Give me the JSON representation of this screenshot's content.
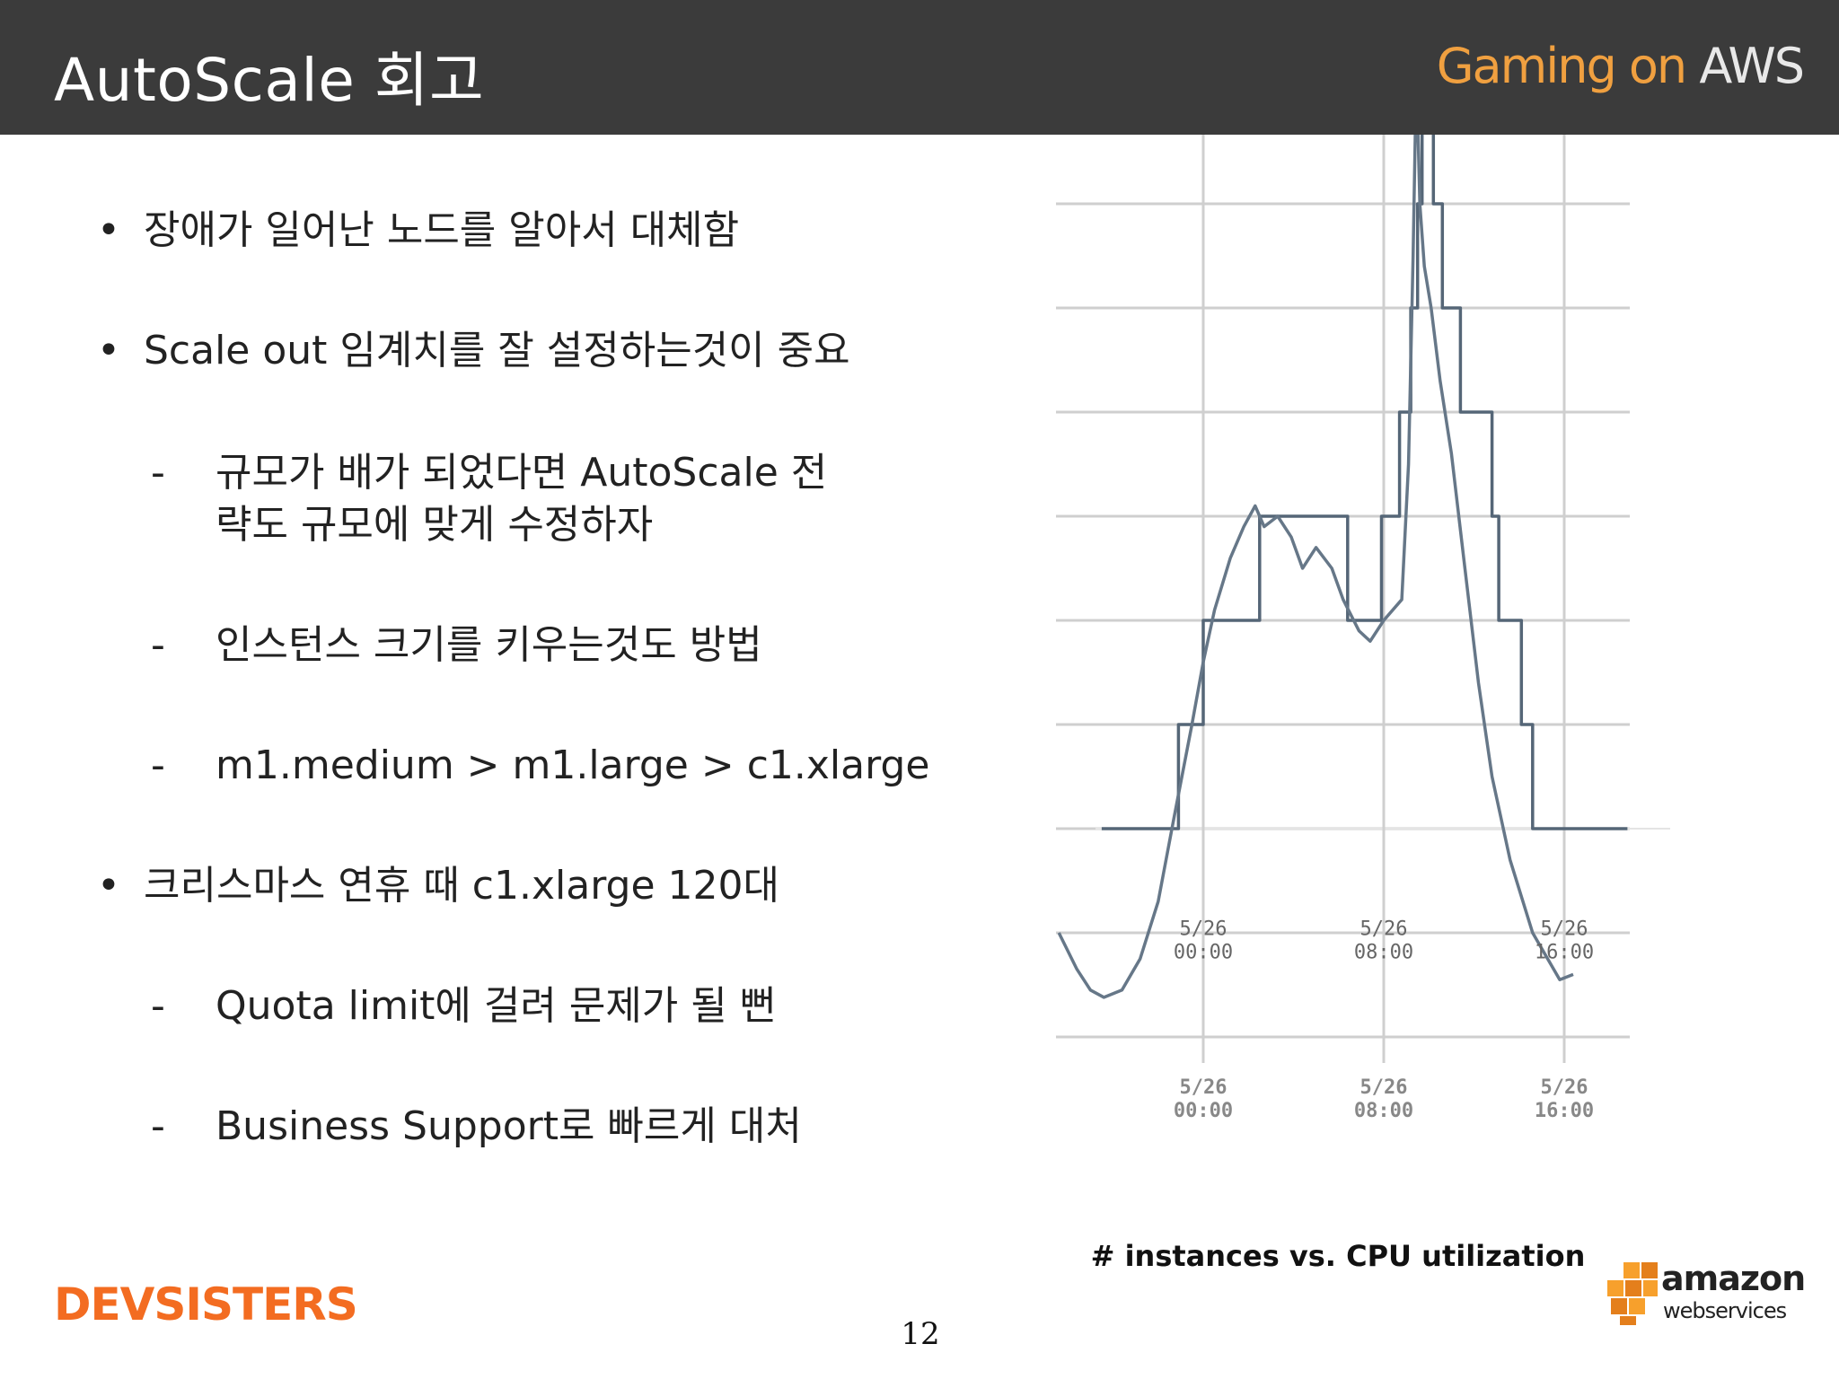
{
  "slide": {
    "title": "AutoScale 회고",
    "brand_part1": "Gaming on ",
    "brand_part2": "AWS",
    "page_number": "12",
    "footer_logo_text": "DEVSISTERS",
    "aws_logo_text1": "amazon",
    "aws_logo_text2": "webservices"
  },
  "bullets": [
    {
      "marker": "•",
      "lines": [
        "장애가 일어난 노드를 알아서 대체함"
      ]
    },
    {
      "marker": "•",
      "lines": [
        "Scale out 임계치를 잘 설정하는것이 중요"
      ]
    },
    {
      "marker": "-",
      "lines": [
        "규모가 배가 되었다면 AutoScale 전",
        "략도 규모에 맞게 수정하자"
      ]
    },
    {
      "marker": "-",
      "lines": [
        "인스턴스 크기를 키우는것도 방법"
      ]
    },
    {
      "marker": "-",
      "lines": [
        "m1.medium > m1.large > c1.xlarge"
      ]
    },
    {
      "marker": "•",
      "lines": [
        "크리스마스 연휴 때 c1.xlarge 120대"
      ]
    },
    {
      "marker": "-",
      "lines": [
        "Quota limit에 걸려 문제가 될 뻔"
      ]
    },
    {
      "marker": "-",
      "lines": [
        "Business Support로 빠르게 대처"
      ]
    }
  ],
  "chart_data": {
    "type": "line",
    "title": "# instances vs. CPU utilization",
    "x_tick_labels_top": [
      [
        "5/26",
        "00:00"
      ],
      [
        "5/26",
        "08:00"
      ],
      [
        "5/26",
        "16:00"
      ]
    ],
    "x_tick_labels_bottom": [
      [
        "5/26",
        "00:00"
      ],
      [
        "5/26",
        "08:00"
      ],
      [
        "5/26",
        "16:00"
      ]
    ],
    "x_ticks_hours": [
      0,
      8,
      16
    ],
    "xlim_hours": [
      -6.4,
      18.8
    ],
    "grid": true,
    "series": [
      {
        "color": "#556677",
        "points_hours_units": [
          [
            -4.5,
            2
          ],
          [
            -1.1,
            2
          ],
          [
            -1.1,
            3
          ],
          [
            0,
            3
          ],
          [
            0,
            4
          ],
          [
            2.5,
            4
          ],
          [
            2.5,
            5
          ],
          [
            6.4,
            5
          ],
          [
            6.4,
            4
          ],
          [
            7.9,
            4
          ],
          [
            7.9,
            5
          ],
          [
            8.7,
            5
          ],
          [
            8.7,
            6
          ],
          [
            9.2,
            6
          ],
          [
            9.2,
            7
          ],
          [
            9.5,
            7
          ],
          [
            9.5,
            8
          ],
          [
            9.7,
            8
          ],
          [
            9.7,
            9
          ],
          [
            10.2,
            9
          ],
          [
            10.2,
            8
          ],
          [
            10.6,
            8
          ],
          [
            10.6,
            7
          ],
          [
            11.4,
            7
          ],
          [
            11.4,
            6
          ],
          [
            12.8,
            6
          ],
          [
            12.8,
            5
          ],
          [
            13.1,
            5
          ],
          [
            13.1,
            4
          ],
          [
            14.1,
            4
          ],
          [
            14.1,
            3
          ],
          [
            14.6,
            3
          ],
          [
            14.6,
            2
          ],
          [
            18.8,
            2
          ]
        ]
      },
      {
        "color": "#667788",
        "points_hours_units": [
          [
            -6.4,
            1.0
          ],
          [
            -5.6,
            0.65
          ],
          [
            -5,
            0.45
          ],
          [
            -4.4,
            0.38
          ],
          [
            -3.6,
            0.45
          ],
          [
            -2.8,
            0.75
          ],
          [
            -2,
            1.3
          ],
          [
            -1.3,
            2.1
          ],
          [
            -0.5,
            3.0
          ],
          [
            0,
            3.6
          ],
          [
            0.5,
            4.1
          ],
          [
            1.2,
            4.6
          ],
          [
            1.8,
            4.9
          ],
          [
            2.3,
            5.1
          ],
          [
            2.7,
            4.9
          ],
          [
            3.3,
            5.0
          ],
          [
            3.9,
            4.8
          ],
          [
            4.4,
            4.5
          ],
          [
            5.0,
            4.7
          ],
          [
            5.7,
            4.5
          ],
          [
            6.2,
            4.2
          ],
          [
            6.9,
            3.9
          ],
          [
            7.4,
            3.8
          ],
          [
            8.0,
            4.0
          ],
          [
            8.8,
            4.2
          ],
          [
            9.1,
            5.5
          ],
          [
            9.3,
            7.5
          ],
          [
            9.45,
            9.3
          ],
          [
            9.6,
            8.0
          ],
          [
            9.8,
            7.4
          ],
          [
            10.1,
            7.0
          ],
          [
            10.5,
            6.3
          ],
          [
            11.0,
            5.6
          ],
          [
            11.6,
            4.5
          ],
          [
            12.2,
            3.4
          ],
          [
            12.8,
            2.5
          ],
          [
            13.6,
            1.7
          ],
          [
            14.6,
            1.0
          ],
          [
            15.8,
            0.55
          ],
          [
            16.4,
            0.6
          ]
        ]
      }
    ]
  }
}
